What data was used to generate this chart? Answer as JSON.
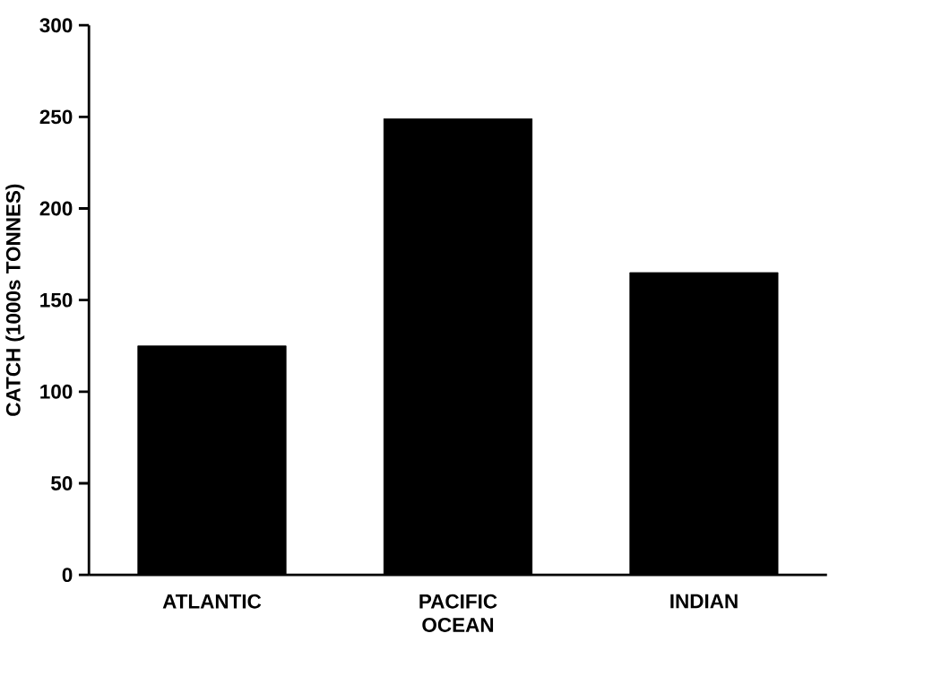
{
  "chart_data": {
    "type": "bar",
    "ylabel": "CATCH (1000s TONNES)",
    "categories": [
      "ATLANTIC",
      "PACIFIC OCEAN",
      "INDIAN"
    ],
    "values": [
      125,
      249,
      165
    ],
    "color": "#000000",
    "ylim": [
      0,
      300
    ],
    "yticks": [
      0,
      50,
      100,
      150,
      200,
      250,
      300
    ],
    "grid": false
  }
}
